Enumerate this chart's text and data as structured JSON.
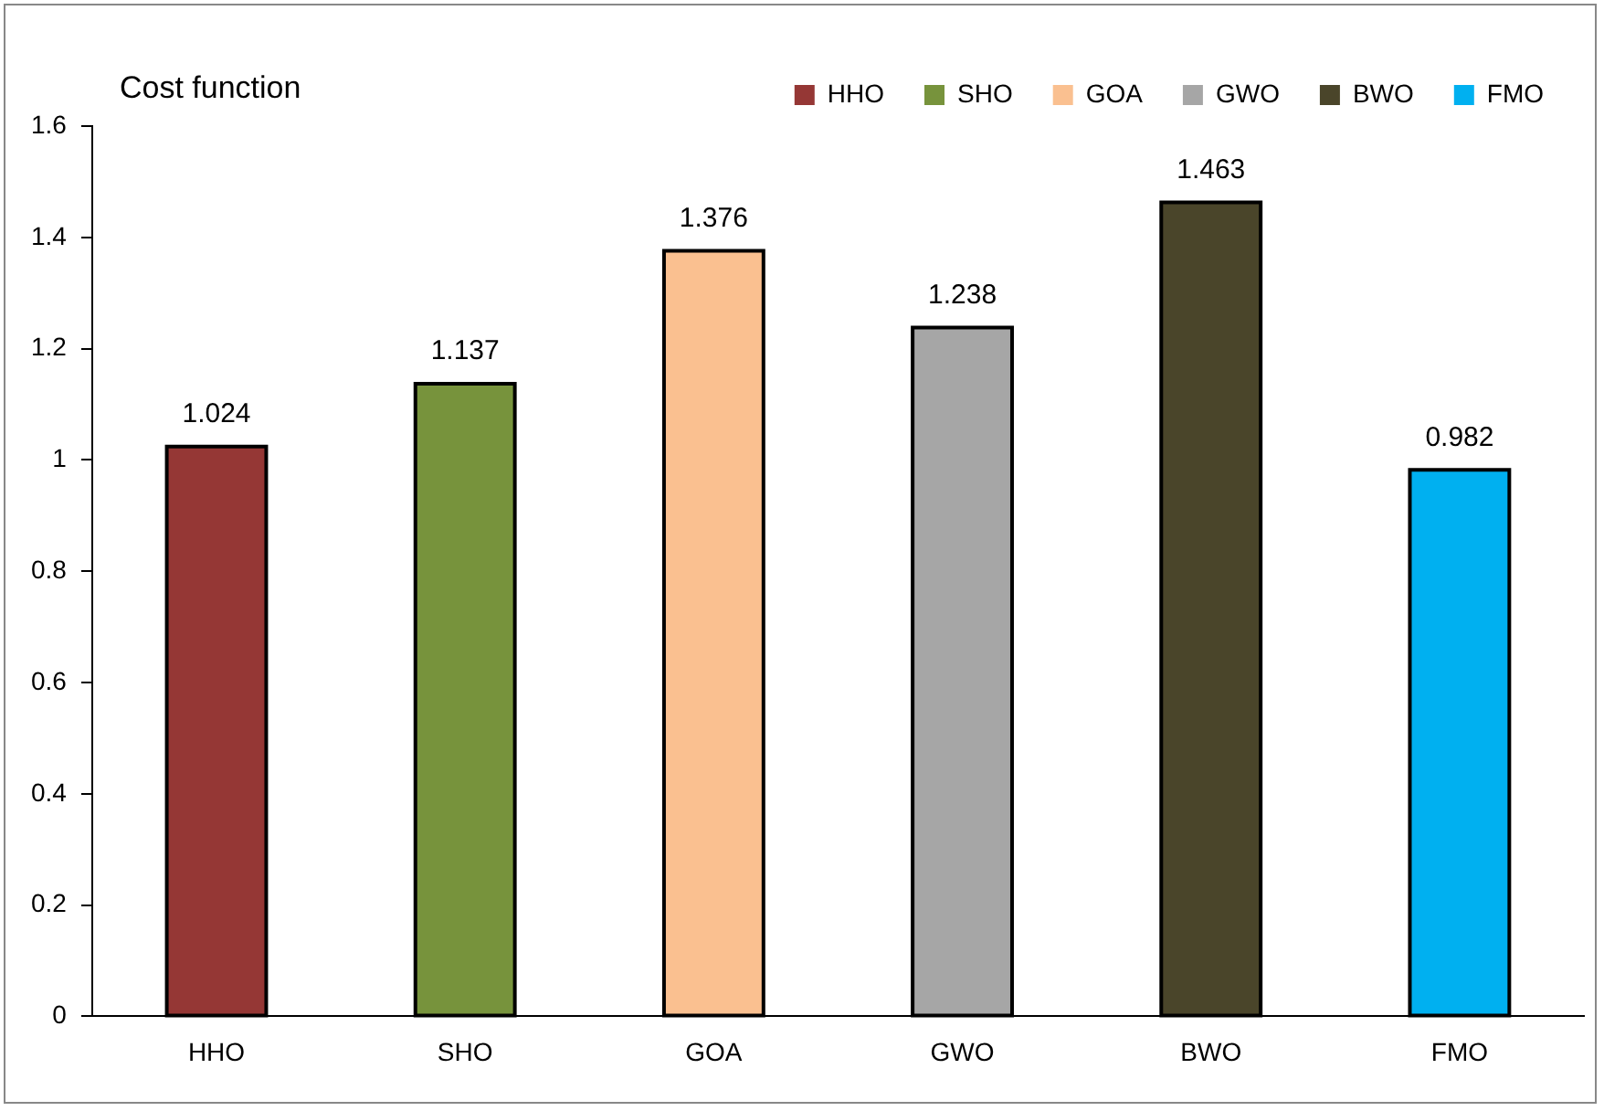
{
  "chart_data": {
    "type": "bar",
    "ylabel": "Cost function",
    "categories": [
      "HHO",
      "SHO",
      "GOA",
      "GWO",
      "BWO",
      "FMO"
    ],
    "series": [
      {
        "name": "HHO",
        "color": "#953735",
        "values": [
          1.024,
          null,
          null,
          null,
          null,
          null
        ]
      },
      {
        "name": "SHO",
        "color": "#77933c",
        "values": [
          null,
          1.137,
          null,
          null,
          null,
          null
        ]
      },
      {
        "name": "GOA",
        "color": "#fac090",
        "values": [
          null,
          null,
          1.376,
          null,
          null,
          null
        ]
      },
      {
        "name": "GWO",
        "color": "#a6a6a6",
        "values": [
          null,
          null,
          null,
          1.238,
          null,
          null
        ]
      },
      {
        "name": "BWO",
        "color": "#4a452a",
        "values": [
          null,
          null,
          null,
          null,
          1.463,
          null
        ]
      },
      {
        "name": "FMO",
        "color": "#00b0f0",
        "values": [
          null,
          null,
          null,
          null,
          null,
          0.982
        ]
      }
    ],
    "ylim": [
      0,
      1.6
    ],
    "yticks": [
      0,
      0.2,
      0.4,
      0.6,
      0.8,
      1,
      1.2,
      1.4,
      1.6
    ],
    "grid": false,
    "legend": "top right",
    "data_labels": true
  }
}
